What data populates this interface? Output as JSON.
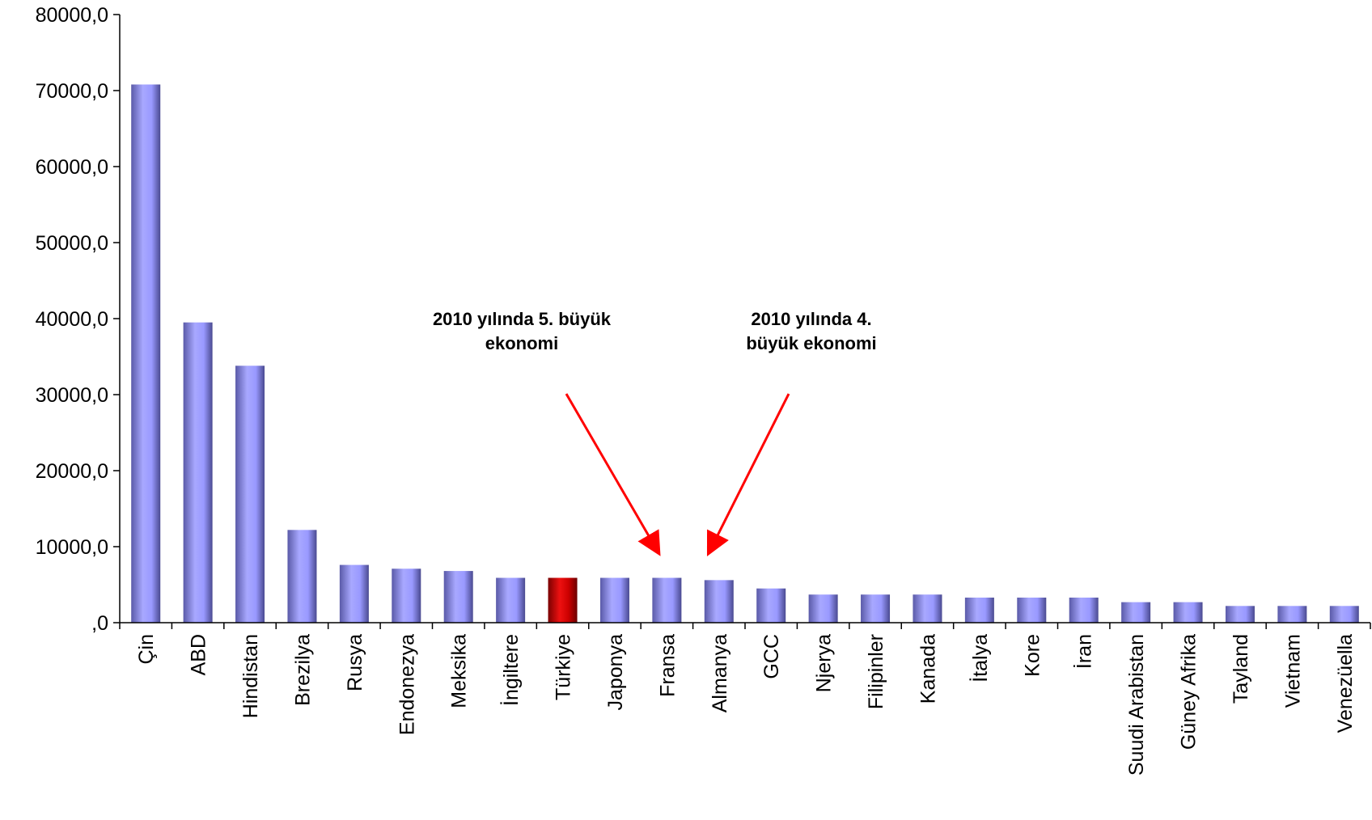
{
  "chart_data": {
    "type": "bar",
    "title": "",
    "xlabel": "",
    "ylabel": "",
    "ylim": [
      0,
      80000
    ],
    "yticks": [
      "80000,0",
      "70000,0",
      "60000,0",
      "50000,0",
      "40000,0",
      "30000,0",
      "20000,0",
      "10000,0",
      ",0"
    ],
    "ytick_values": [
      80000,
      70000,
      60000,
      50000,
      40000,
      30000,
      20000,
      10000,
      0
    ],
    "categories": [
      "Çin",
      "ABD",
      "Hindistan",
      "Brezilya",
      "Rusya",
      "Endonezya",
      "Meksika",
      "İngiltere",
      "Türkiye",
      "Japonya",
      "Fransa",
      "Almanya",
      "GCC",
      "Njerya",
      "Filipinler",
      "Kanada",
      "İtalya",
      "Kore",
      "İran",
      "Suudi Arabistan",
      "Güney Afrika",
      "Tayland",
      "Vietnam",
      "Venezüella"
    ],
    "values": [
      70800,
      39500,
      33800,
      12200,
      7600,
      7100,
      6800,
      5900,
      5900,
      5900,
      5900,
      5600,
      4500,
      3700,
      3700,
      3700,
      3300,
      3300,
      3300,
      2700,
      2700,
      2200,
      2200,
      2200
    ],
    "highlight_category": "Türkiye",
    "colors": {
      "bar": "#9999ff",
      "highlight": "#cc0000",
      "arrow": "#ff0000",
      "axis": "#000000"
    },
    "grid": false,
    "legend": "none",
    "annotations": [
      {
        "lines": [
          "2010 yılında 5. büyük",
          "ekonomi"
        ],
        "points_to": "Fransa"
      },
      {
        "lines": [
          "2010 yılında 4.",
          "büyük ekonomi"
        ],
        "points_to": "Almanya"
      }
    ]
  }
}
